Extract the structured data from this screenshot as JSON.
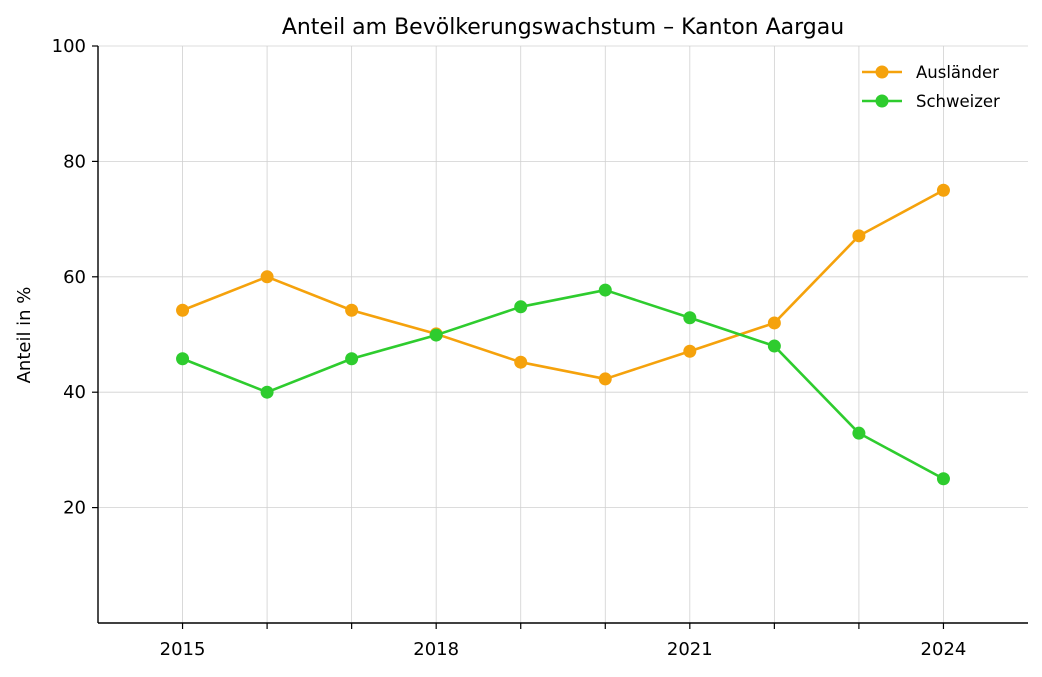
{
  "chart_data": {
    "type": "line",
    "title": "Anteil am Bevölkerungswachstum – Kanton Aargau",
    "xlabel": "",
    "ylabel": "Anteil in %",
    "x": [
      2015,
      2016,
      2017,
      2018,
      2019,
      2020,
      2021,
      2022,
      2023,
      2024
    ],
    "xticks": [
      "2015",
      "2018",
      "2021",
      "2024"
    ],
    "yticks": [
      "20",
      "40",
      "60",
      "80",
      "100"
    ],
    "xlim": [
      2014,
      2025
    ],
    "ylim": [
      0,
      100
    ],
    "grid": true,
    "legend_position": "top-right",
    "series": [
      {
        "name": "Ausländer",
        "color": "#f5a20c",
        "values": [
          54.2,
          60.0,
          54.2,
          50.1,
          45.2,
          42.3,
          47.1,
          52.0,
          67.1,
          75.0
        ]
      },
      {
        "name": "Schweizer",
        "color": "#2ecc2e",
        "values": [
          45.8,
          40.0,
          45.8,
          49.9,
          54.8,
          57.7,
          52.9,
          48.0,
          32.9,
          25.0
        ]
      }
    ]
  }
}
